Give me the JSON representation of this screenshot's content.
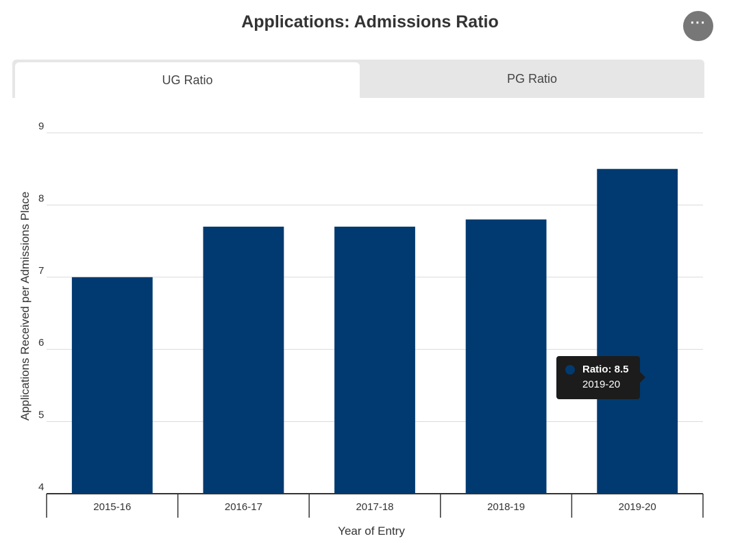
{
  "header": {
    "title": "Applications: Admissions Ratio",
    "menu_glyph": "···"
  },
  "tabs": [
    {
      "label": "UG Ratio",
      "active": true
    },
    {
      "label": "PG Ratio",
      "active": false
    }
  ],
  "tooltip": {
    "series_label": "Ratio: 8.5",
    "category": "2019-20"
  },
  "colors": {
    "bar": "#003a70",
    "grid": "#d9d9d9",
    "axis": "#333333"
  },
  "chart_data": {
    "type": "bar",
    "title": "Applications: Admissions Ratio",
    "xlabel": "Year of Entry",
    "ylabel": "Applications Received per Admissions Place",
    "categories": [
      "2015-16",
      "2016-17",
      "2017-18",
      "2018-19",
      "2019-20"
    ],
    "series": [
      {
        "name": "Ratio",
        "values": [
          7.0,
          7.7,
          7.7,
          7.8,
          8.5
        ]
      }
    ],
    "ylim": [
      4,
      9
    ],
    "yticks": [
      4,
      5,
      6,
      7,
      8,
      9
    ],
    "grid": true,
    "legend": "none"
  }
}
